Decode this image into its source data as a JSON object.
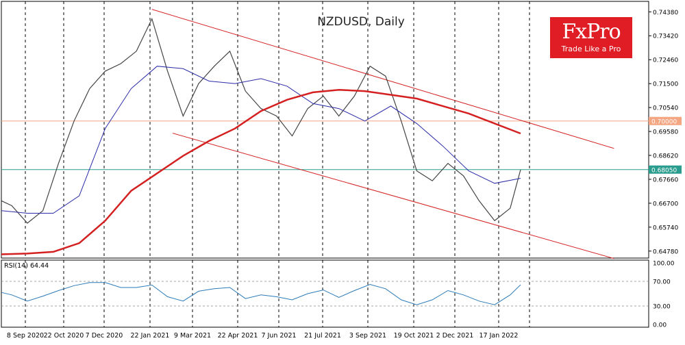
{
  "chart_data": {
    "type": "line",
    "title": "NZDUSD, Daily",
    "symbol": "NZDUSD",
    "timeframe": "Daily",
    "price_axis": {
      "ticks": [
        0.6478,
        0.6574,
        0.667,
        0.6766,
        0.6862,
        0.6958,
        0.7054,
        0.715,
        0.7246,
        0.7342,
        0.7438
      ],
      "tick_labels": [
        "0.64780",
        "0.65740",
        "0.66700",
        "0.67660",
        "0.68620",
        "0.69580",
        "0.70540",
        "0.71500",
        "0.72460",
        "0.73420",
        "0.74380"
      ],
      "range": [
        0.645,
        0.748
      ]
    },
    "x_axis": {
      "labels": [
        "8 Sep 2020",
        "22 Oct 2020",
        "7 Dec 2020",
        "22 Jan 2021",
        "9 Mar 2021",
        "22 Apr 2021",
        "7 Jun 2021",
        "21 Jul 2021",
        "3 Sep 2021",
        "19 Oct 2021",
        "2 Dec 2021",
        "17 Jan 2022"
      ]
    },
    "price_markers": [
      {
        "label": "0.70000",
        "value": 0.7,
        "color": "#f4a582"
      },
      {
        "label": "0.68050",
        "value": 0.6805,
        "color": "#2a9d8f"
      }
    ],
    "series": [
      {
        "name": "price",
        "color": "#444444",
        "x": [
          0,
          0.02,
          0.05,
          0.08,
          0.11,
          0.14,
          0.17,
          0.2,
          0.23,
          0.26,
          0.29,
          0.32,
          0.35,
          0.38,
          0.41,
          0.44,
          0.47,
          0.5,
          0.53,
          0.56,
          0.59,
          0.62,
          0.65,
          0.68,
          0.71,
          0.74,
          0.77,
          0.8,
          0.83,
          0.86,
          0.89,
          0.92,
          0.95,
          0.98,
          1.0
        ],
        "values": [
          0.668,
          0.666,
          0.659,
          0.664,
          0.683,
          0.7,
          0.713,
          0.72,
          0.723,
          0.728,
          0.741,
          0.72,
          0.702,
          0.715,
          0.722,
          0.728,
          0.712,
          0.705,
          0.702,
          0.694,
          0.705,
          0.71,
          0.702,
          0.71,
          0.722,
          0.718,
          0.7,
          0.68,
          0.676,
          0.683,
          0.678,
          0.668,
          0.66,
          0.665,
          0.6805
        ]
      },
      {
        "name": "ma_blue",
        "color": "#2a2aa8",
        "x": [
          0,
          0.05,
          0.1,
          0.15,
          0.2,
          0.25,
          0.3,
          0.35,
          0.4,
          0.45,
          0.5,
          0.55,
          0.6,
          0.65,
          0.7,
          0.75,
          0.8,
          0.85,
          0.9,
          0.95,
          1.0
        ],
        "values": [
          0.664,
          0.663,
          0.663,
          0.67,
          0.697,
          0.713,
          0.722,
          0.721,
          0.716,
          0.715,
          0.717,
          0.714,
          0.707,
          0.705,
          0.7,
          0.706,
          0.699,
          0.69,
          0.68,
          0.675,
          0.677
        ]
      },
      {
        "name": "ma_red",
        "color": "#d42020",
        "x": [
          0,
          0.05,
          0.1,
          0.15,
          0.2,
          0.25,
          0.3,
          0.35,
          0.4,
          0.45,
          0.5,
          0.55,
          0.6,
          0.65,
          0.7,
          0.75,
          0.8,
          0.85,
          0.9,
          0.95,
          1.0
        ],
        "values": [
          0.6465,
          0.6468,
          0.6475,
          0.651,
          0.66,
          0.672,
          0.679,
          0.686,
          0.692,
          0.697,
          0.704,
          0.7085,
          0.7115,
          0.7125,
          0.712,
          0.7105,
          0.709,
          0.706,
          0.703,
          0.699,
          0.695
        ]
      }
    ],
    "channel": [
      {
        "from": [
          0.29,
          0.7448
        ],
        "to": [
          1.18,
          0.689
        ]
      },
      {
        "from": [
          0.33,
          0.6951
        ],
        "to": [
          1.18,
          0.6448
        ]
      }
    ],
    "rsi": {
      "label": "RSI(14) 64.44",
      "ticks": [
        "100.00",
        "70.00",
        "30.00",
        "0.00"
      ],
      "levels": [
        70,
        30
      ],
      "x": [
        0,
        0.02,
        0.05,
        0.08,
        0.11,
        0.14,
        0.17,
        0.2,
        0.23,
        0.26,
        0.29,
        0.32,
        0.35,
        0.38,
        0.41,
        0.44,
        0.47,
        0.5,
        0.53,
        0.56,
        0.59,
        0.62,
        0.65,
        0.68,
        0.71,
        0.74,
        0.77,
        0.8,
        0.83,
        0.86,
        0.89,
        0.92,
        0.95,
        0.98,
        1.0
      ],
      "values": [
        52,
        48,
        38,
        46,
        55,
        63,
        68,
        68,
        60,
        60,
        64,
        45,
        38,
        54,
        58,
        60,
        42,
        48,
        45,
        40,
        50,
        56,
        44,
        55,
        65,
        58,
        40,
        32,
        40,
        55,
        48,
        38,
        32,
        48,
        64.44
      ]
    }
  },
  "logo": {
    "main": "FxPro",
    "tagline": "Trade Like a Pro"
  }
}
